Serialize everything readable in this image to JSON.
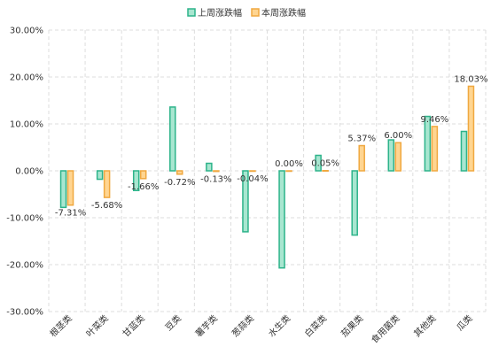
{
  "chart_data": {
    "type": "bar",
    "categories": [
      "根茎类",
      "叶菜类",
      "甘蓝类",
      "豆类",
      "薯芋类",
      "葱蒜类",
      "水生类",
      "白菜类",
      "茄果类",
      "食用菌类",
      "其他类",
      "瓜类"
    ],
    "series": [
      {
        "name": "上周涨跌幅",
        "values": [
          -7.8,
          -1.8,
          -4.2,
          13.6,
          1.6,
          -13.0,
          -20.7,
          3.3,
          -13.7,
          6.6,
          11.6,
          8.4
        ],
        "fill": "#a8e6d0",
        "stroke": "#2db38a"
      },
      {
        "name": "本周涨跌幅",
        "values": [
          -7.31,
          -5.68,
          -1.66,
          -0.72,
          -0.13,
          -0.04,
          0.0,
          0.05,
          5.37,
          6.0,
          9.46,
          18.03
        ],
        "fill": "#ffd591",
        "stroke": "#f0a840"
      }
    ],
    "data_labels": [
      "-7.31%",
      "-5.68%",
      "-1.66%",
      "-0.72%",
      "-0.13%",
      "-0.04%",
      "0.00%",
      "0.05%",
      "5.37%",
      "6.00%",
      "9.46%",
      "18.03%"
    ],
    "y_ticks": [
      "30.00%",
      "20.00%",
      "10.00%",
      "0.00%",
      "-10.00%",
      "-20.00%",
      "-30.00%"
    ],
    "ylim": [
      -30,
      30
    ],
    "y_tick_values": [
      30,
      20,
      10,
      0,
      -10,
      -20,
      -30
    ],
    "grid": true,
    "legend_position": "top-center"
  }
}
